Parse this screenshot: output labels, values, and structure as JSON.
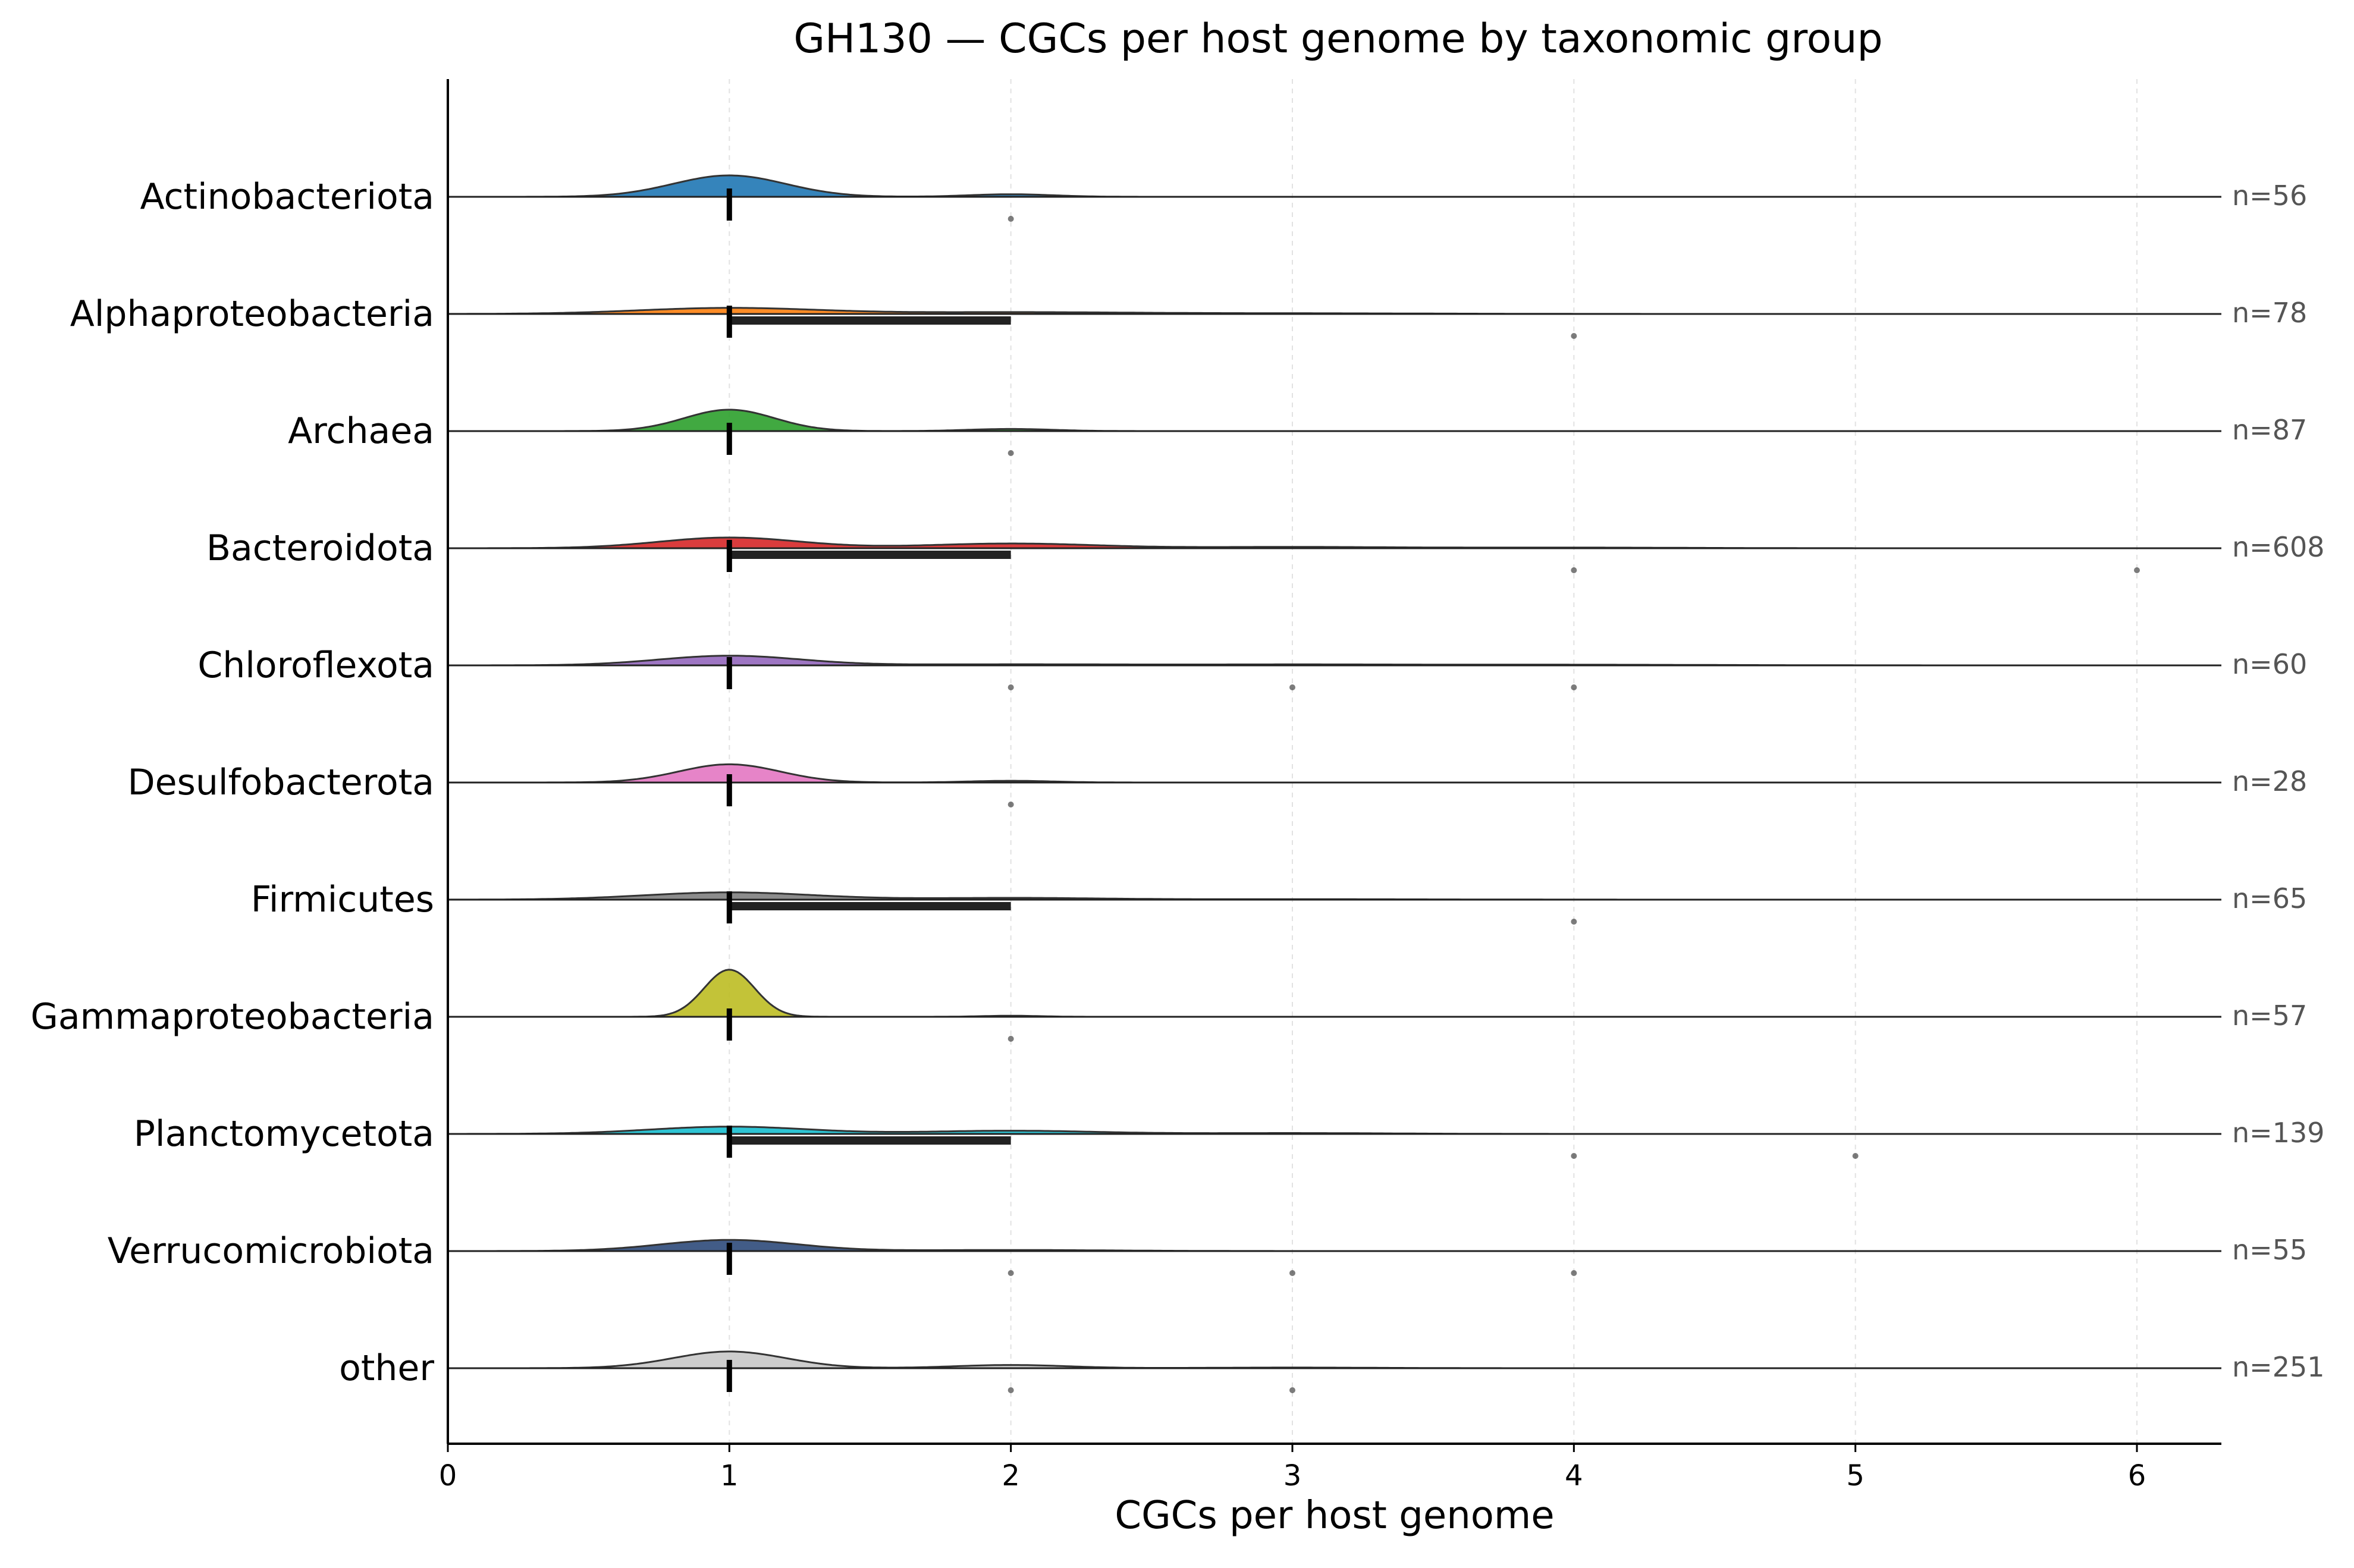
{
  "chart_data": {
    "type": "ridgeline",
    "title": "GH130 — CGCs per host genome by taxonomic group",
    "xlabel": "CGCs per host genome",
    "xlim": [
      0,
      6.3
    ],
    "xticks": [
      0,
      1,
      2,
      3,
      4,
      5,
      6
    ],
    "grid": "x-dashed",
    "groups": [
      {
        "name": "Actinobacteriota",
        "n_label": "n=56",
        "color": "#1f77b4",
        "peaks": [
          [
            1,
            0.2,
            1.0
          ],
          [
            2,
            0.15,
            0.12
          ]
        ],
        "median": 1,
        "q1": 1,
        "q3": 1,
        "outliers": [
          2
        ]
      },
      {
        "name": "Alphaproteobacteria",
        "n_label": "n=78",
        "color": "#ff7f0e",
        "peaks": [
          [
            1,
            0.32,
            0.28
          ],
          [
            2,
            0.4,
            0.08
          ],
          [
            3,
            0.5,
            0.03
          ]
        ],
        "median": 1,
        "q1": 1,
        "q3": 2,
        "outliers": [
          4
        ]
      },
      {
        "name": "Archaea",
        "n_label": "n=87",
        "color": "#2ca02c",
        "peaks": [
          [
            1,
            0.16,
            1.0
          ],
          [
            2,
            0.15,
            0.1
          ]
        ],
        "median": 1,
        "q1": 1,
        "q3": 1,
        "outliers": [
          2
        ]
      },
      {
        "name": "Bacteroidota",
        "n_label": "n=608",
        "color": "#d62728",
        "peaks": [
          [
            1,
            0.25,
            0.5
          ],
          [
            2,
            0.3,
            0.22
          ],
          [
            3,
            0.35,
            0.06
          ],
          [
            4,
            0.4,
            0.03
          ]
        ],
        "median": 1,
        "q1": 1,
        "q3": 2,
        "outliers": [
          4,
          6
        ]
      },
      {
        "name": "Chloroflexota",
        "n_label": "n=60",
        "color": "#9467bd",
        "peaks": [
          [
            1,
            0.25,
            0.45
          ],
          [
            2,
            0.4,
            0.05
          ],
          [
            3,
            0.4,
            0.04
          ],
          [
            4,
            0.5,
            0.03
          ]
        ],
        "median": 1,
        "q1": 1,
        "q3": 1,
        "outliers": [
          2,
          3,
          4
        ]
      },
      {
        "name": "Desulfobacterota",
        "n_label": "n=28",
        "color": "#e377c2",
        "peaks": [
          [
            1,
            0.18,
            0.85
          ],
          [
            2,
            0.15,
            0.08
          ]
        ],
        "median": 1,
        "q1": 1,
        "q3": 1,
        "outliers": [
          2
        ]
      },
      {
        "name": "Firmicutes",
        "n_label": "n=65",
        "color": "#7f7f7f",
        "peaks": [
          [
            1,
            0.3,
            0.34
          ],
          [
            2,
            0.3,
            0.08
          ],
          [
            3,
            0.5,
            0.02
          ]
        ],
        "median": 1,
        "q1": 1,
        "q3": 2,
        "outliers": [
          4
        ]
      },
      {
        "name": "Gammaproteobacteria",
        "n_label": "n=57",
        "color": "#bcbd22",
        "peaks": [
          [
            1,
            0.09,
            2.2
          ],
          [
            2,
            0.1,
            0.05
          ]
        ],
        "median": 1,
        "q1": 1,
        "q3": 1,
        "outliers": [
          2
        ]
      },
      {
        "name": "Planctomycetota",
        "n_label": "n=139",
        "color": "#17becf",
        "peaks": [
          [
            1,
            0.28,
            0.34
          ],
          [
            2,
            0.3,
            0.15
          ],
          [
            3,
            0.35,
            0.04
          ]
        ],
        "median": 1,
        "q1": 1,
        "q3": 2,
        "outliers": [
          4,
          5
        ]
      },
      {
        "name": "Verrucomicrobiota",
        "n_label": "n=55",
        "color": "#2e4a7a",
        "peaks": [
          [
            1,
            0.24,
            0.52
          ],
          [
            2,
            0.35,
            0.05
          ]
        ],
        "median": 1,
        "q1": 1,
        "q3": 1,
        "outliers": [
          2,
          3,
          4
        ]
      },
      {
        "name": "other",
        "n_label": "n=251",
        "color": "#c8c8c8",
        "peaks": [
          [
            1,
            0.2,
            0.78
          ],
          [
            2,
            0.2,
            0.15
          ],
          [
            3,
            0.3,
            0.03
          ]
        ],
        "median": 1,
        "q1": 1,
        "q3": 1,
        "outliers": [
          2,
          3
        ]
      }
    ]
  }
}
